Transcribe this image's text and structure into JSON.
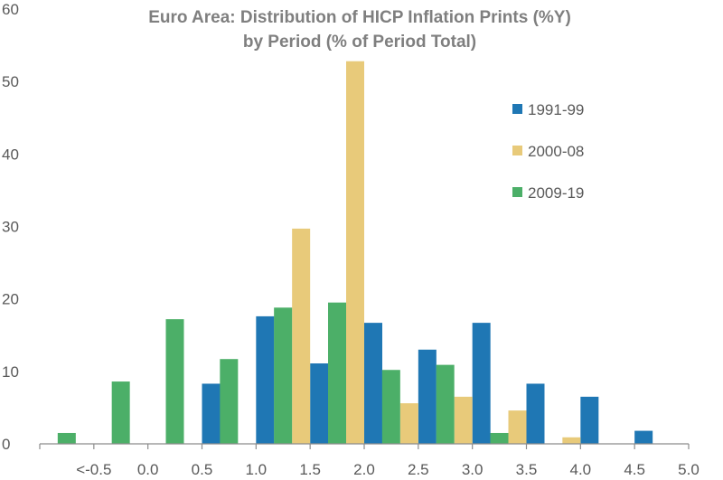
{
  "chart_data": {
    "type": "bar",
    "title_line1": "Euro Area: Distribution of HICP Inflation Prints (%Y)",
    "title_line2": "by Period (% of Period Total)",
    "xlabel": "",
    "ylabel": "",
    "ylim": [
      0,
      60
    ],
    "yticks": [
      "0",
      "10",
      "20",
      "30",
      "40",
      "50",
      "60"
    ],
    "categories": [
      "<-0.5",
      "0.0",
      "0.5",
      "1.0",
      "1.5",
      "2.0",
      "2.5",
      "3.0",
      "3.5",
      "4.0",
      "4.5",
      "5.0"
    ],
    "legend_position": "right",
    "series": [
      {
        "name": "1991-99",
        "color": "#1f77b4",
        "values": [
          0,
          0,
          8.3,
          17.6,
          11.1,
          16.7,
          13.0,
          16.7,
          8.3,
          6.5,
          1.8,
          0
        ]
      },
      {
        "name": "2000-08",
        "color": "#e8ca7a",
        "values": [
          0,
          0,
          0,
          0,
          29.7,
          52.8,
          5.6,
          6.5,
          4.6,
          0.9,
          0,
          0
        ]
      },
      {
        "name": "2009-19",
        "color": "#4caf68",
        "values": [
          1.5,
          8.6,
          17.2,
          11.7,
          18.8,
          19.5,
          10.2,
          10.9,
          1.5,
          0,
          0,
          0
        ]
      }
    ]
  }
}
